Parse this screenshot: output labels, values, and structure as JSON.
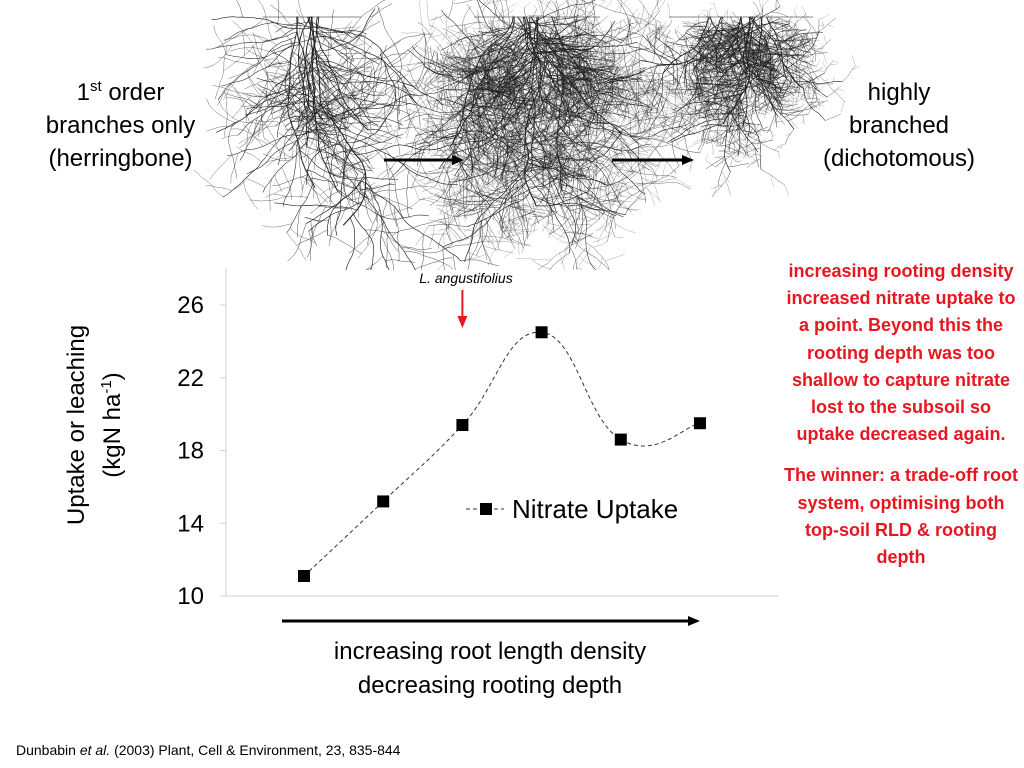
{
  "top_diagram": {
    "left_label": {
      "prefix": "1",
      "superscript": "st",
      "line1_rest": " order",
      "line2": "branches only",
      "line3": "(herringbone)"
    },
    "right_label": {
      "line1": "highly",
      "line2": "branched",
      "line3": "(dichotomous)"
    }
  },
  "chart_data": {
    "type": "line",
    "title": "",
    "x": [
      1,
      2,
      3,
      4,
      5,
      6
    ],
    "series": [
      {
        "name": "Nitrate Uptake",
        "values": [
          11.1,
          15.2,
          19.4,
          24.5,
          18.6,
          19.5
        ]
      }
    ],
    "ylabel_line1": "Uptake or leaching",
    "ylabel_line2_prefix": "(kgN ha",
    "ylabel_superscript": "-1",
    "ylabel_line2_suffix": ")",
    "xlabel_line1": "increasing root length density",
    "xlabel_line2": "decreasing rooting depth",
    "yticks": [
      "26",
      "22",
      "18",
      "14",
      "10"
    ],
    "ylim": [
      10,
      28
    ],
    "legend_position": "center-right",
    "marker": "square",
    "line_style": "dashed",
    "annotation": {
      "text": "L. angustifolius",
      "x": 3,
      "color": "#e8161f"
    }
  },
  "note": {
    "paragraph1": "increasing rooting density increased nitrate uptake to a point.  Beyond this the rooting depth was too shallow to capture nitrate lost to the subsoil so uptake decreased again.",
    "paragraph2": "The winner: a trade-off root system, optimising both top-soil RLD & rooting depth",
    "color": "#e8161f"
  },
  "citation": {
    "author": "Dunbabin ",
    "etal": "et al.",
    "rest": " (2003) Plant, Cell & Environment, 23, 835-844"
  }
}
